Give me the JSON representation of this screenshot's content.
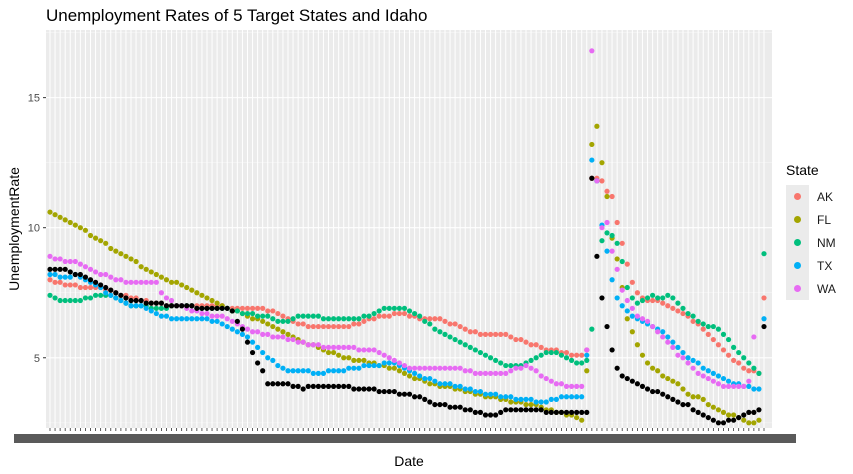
{
  "chart_data": {
    "type": "scatter",
    "title": "Unemployment Rates of 5 Target States and Idaho",
    "xlabel": "Date",
    "ylabel": "UnemploymentRate",
    "y_ticks": [
      5,
      10,
      15
    ],
    "ylim": [
      2.3,
      17.6
    ],
    "x_range_months": "2010-01 to 2021-10 (monthly)",
    "grid": true,
    "legend_position": "right",
    "legend_title": "State",
    "n_points": 142,
    "series": [
      {
        "name": "AK",
        "color": "#F8766D",
        "values": [
          8.0,
          7.9,
          7.9,
          7.8,
          7.8,
          7.8,
          7.7,
          7.7,
          7.7,
          7.7,
          7.7,
          7.6,
          7.6,
          7.5,
          7.4,
          7.4,
          7.3,
          7.3,
          7.2,
          7.2,
          7.1,
          7.1,
          7.1,
          7.0,
          7.0,
          7.0,
          7.0,
          7.0,
          7.0,
          7.0,
          7.0,
          7.0,
          7.0,
          7.0,
          7.0,
          6.9,
          6.9,
          6.9,
          6.9,
          6.9,
          6.9,
          6.9,
          6.9,
          6.8,
          6.8,
          6.7,
          6.6,
          6.5,
          6.4,
          6.3,
          6.3,
          6.2,
          6.2,
          6.2,
          6.2,
          6.2,
          6.2,
          6.2,
          6.2,
          6.2,
          6.3,
          6.3,
          6.4,
          6.5,
          6.5,
          6.6,
          6.6,
          6.6,
          6.7,
          6.7,
          6.7,
          6.6,
          6.6,
          6.5,
          6.5,
          6.5,
          6.5,
          6.5,
          6.4,
          6.3,
          6.3,
          6.2,
          6.1,
          6.0,
          6.0,
          5.9,
          5.9,
          5.9,
          5.9,
          5.9,
          5.9,
          5.8,
          5.7,
          5.7,
          5.6,
          5.5,
          5.5,
          5.4,
          5.3,
          5.3,
          5.3,
          5.2,
          5.2,
          5.1,
          5.1,
          5.1,
          5.3,
          11.9,
          11.9,
          11.8,
          11.4,
          11.2,
          10.2,
          9.4,
          8.6,
          7.9,
          7.5,
          7.3,
          7.2,
          7.2,
          7.2,
          7.1,
          7.0,
          6.9,
          6.8,
          6.7,
          6.6,
          6.4,
          6.3,
          6.1,
          5.9,
          5.7,
          5.5,
          5.3,
          5.1,
          4.9,
          4.8,
          4.6,
          4.5,
          4.5,
          4.4,
          7.3
        ]
      },
      {
        "name": "FL",
        "color": "#A3A500",
        "values": [
          10.6,
          10.5,
          10.4,
          10.3,
          10.2,
          10.1,
          10.0,
          9.9,
          9.7,
          9.6,
          9.5,
          9.4,
          9.2,
          9.1,
          9.0,
          8.9,
          8.8,
          8.7,
          8.5,
          8.4,
          8.3,
          8.2,
          8.1,
          8.0,
          7.9,
          7.9,
          7.8,
          7.7,
          7.6,
          7.5,
          7.4,
          7.3,
          7.2,
          7.1,
          7.0,
          6.9,
          6.8,
          6.8,
          6.7,
          6.6,
          6.5,
          6.5,
          6.4,
          6.3,
          6.2,
          6.1,
          6.0,
          5.9,
          5.8,
          5.7,
          5.6,
          5.5,
          5.5,
          5.4,
          5.3,
          5.2,
          5.2,
          5.1,
          5.0,
          5.0,
          4.9,
          4.9,
          4.9,
          4.8,
          4.8,
          4.7,
          4.7,
          4.6,
          4.6,
          4.5,
          4.4,
          4.3,
          4.2,
          4.2,
          4.1,
          4.0,
          4.0,
          3.9,
          3.9,
          3.9,
          3.8,
          3.8,
          3.7,
          3.7,
          3.6,
          3.6,
          3.5,
          3.5,
          3.5,
          3.4,
          3.4,
          3.3,
          3.3,
          3.3,
          3.2,
          3.2,
          3.2,
          3.1,
          3.0,
          3.0,
          2.9,
          2.9,
          2.8,
          2.8,
          2.7,
          2.6,
          4.5,
          13.2,
          13.9,
          12.5,
          11.2,
          9.6,
          8.8,
          7.7,
          6.5,
          6.0,
          5.5,
          5.1,
          4.8,
          4.6,
          4.5,
          4.3,
          4.2,
          4.1,
          4.0,
          3.8,
          3.6,
          3.5,
          3.5,
          3.4,
          3.2,
          3.1,
          3.0,
          2.9,
          2.8,
          2.8,
          2.7,
          2.6,
          2.5,
          2.5,
          2.6
        ]
      },
      {
        "name": "NM",
        "color": "#00BF7D",
        "values": [
          7.4,
          7.3,
          7.2,
          7.2,
          7.2,
          7.2,
          7.2,
          7.3,
          7.3,
          7.4,
          7.4,
          7.4,
          7.4,
          7.3,
          7.2,
          7.1,
          7.0,
          7.0,
          7.0,
          7.0,
          6.9,
          6.9,
          6.9,
          6.9,
          7.0,
          7.0,
          7.0,
          7.0,
          7.0,
          6.9,
          6.9,
          6.9,
          6.9,
          6.9,
          6.9,
          6.9,
          6.8,
          6.8,
          6.7,
          6.7,
          6.7,
          6.6,
          6.6,
          6.6,
          6.5,
          6.4,
          6.4,
          6.4,
          6.5,
          6.6,
          6.6,
          6.6,
          6.6,
          6.6,
          6.5,
          6.5,
          6.5,
          6.5,
          6.5,
          6.5,
          6.5,
          6.5,
          6.6,
          6.6,
          6.7,
          6.8,
          6.9,
          6.9,
          6.9,
          6.9,
          6.9,
          6.8,
          6.7,
          6.6,
          6.4,
          6.3,
          6.1,
          6.0,
          5.9,
          5.8,
          5.7,
          5.6,
          5.5,
          5.4,
          5.3,
          5.2,
          5.1,
          5.0,
          4.9,
          4.8,
          4.7,
          4.7,
          4.7,
          4.7,
          4.8,
          4.9,
          5.0,
          5.1,
          5.2,
          5.2,
          5.2,
          5.1,
          5.0,
          4.9,
          4.8,
          4.8,
          4.9,
          6.1,
          11.8,
          9.5,
          9.8,
          9.7,
          9.4,
          8.7,
          7.7,
          7.3,
          7.1,
          7.2,
          7.3,
          7.4,
          7.3,
          7.3,
          7.4,
          7.3,
          7.1,
          6.9,
          6.7,
          6.6,
          6.4,
          6.3,
          6.2,
          6.2,
          6.1,
          5.9,
          5.7,
          5.4,
          5.2,
          5.0,
          4.8,
          4.6,
          4.4,
          9.0
        ]
      },
      {
        "name": "TX",
        "color": "#00B0F6",
        "values": [
          8.2,
          8.2,
          8.1,
          8.1,
          8.1,
          8.2,
          8.1,
          8.0,
          7.9,
          7.8,
          7.7,
          7.5,
          7.4,
          7.3,
          7.2,
          7.1,
          7.0,
          7.0,
          7.0,
          6.9,
          6.8,
          6.7,
          6.6,
          6.6,
          6.5,
          6.5,
          6.5,
          6.5,
          6.5,
          6.5,
          6.5,
          6.5,
          6.4,
          6.4,
          6.3,
          6.2,
          6.1,
          6.0,
          5.9,
          5.8,
          5.6,
          5.4,
          5.2,
          5.0,
          4.9,
          4.7,
          4.6,
          4.5,
          4.5,
          4.5,
          4.5,
          4.5,
          4.4,
          4.4,
          4.4,
          4.5,
          4.5,
          4.5,
          4.5,
          4.6,
          4.6,
          4.6,
          4.7,
          4.7,
          4.7,
          4.7,
          4.8,
          4.8,
          4.8,
          4.7,
          4.6,
          4.5,
          4.4,
          4.3,
          4.2,
          4.2,
          4.1,
          4.0,
          4.0,
          4.0,
          3.9,
          3.9,
          3.8,
          3.8,
          3.7,
          3.7,
          3.6,
          3.6,
          3.6,
          3.5,
          3.5,
          3.5,
          3.4,
          3.4,
          3.4,
          3.4,
          3.3,
          3.3,
          3.3,
          3.4,
          3.4,
          3.5,
          3.5,
          3.5,
          3.5,
          3.5,
          5.1,
          12.6,
          11.8,
          10.1,
          9.1,
          8.0,
          7.3,
          7.0,
          6.8,
          6.6,
          6.5,
          6.4,
          6.3,
          6.2,
          6.1,
          6.0,
          5.8,
          5.6,
          5.4,
          5.2,
          5.0,
          4.9,
          4.8,
          4.6,
          4.5,
          4.4,
          4.3,
          4.2,
          4.1,
          4.0,
          4.0,
          3.9,
          3.9,
          3.8,
          3.8,
          6.5
        ]
      },
      {
        "name": "WA",
        "color": "#E76BF3",
        "values": [
          8.9,
          8.8,
          8.8,
          8.7,
          8.7,
          8.7,
          8.6,
          8.5,
          8.4,
          8.3,
          8.2,
          8.2,
          8.1,
          8.0,
          8.0,
          7.9,
          7.9,
          7.9,
          7.9,
          7.9,
          7.9,
          7.9,
          7.5,
          7.3,
          7.2,
          7.0,
          7.0,
          6.9,
          6.8,
          6.8,
          6.7,
          6.7,
          6.6,
          6.6,
          6.6,
          6.5,
          6.4,
          6.3,
          6.2,
          6.1,
          6.0,
          6.0,
          5.9,
          5.9,
          5.8,
          5.8,
          5.8,
          5.7,
          5.7,
          5.6,
          5.6,
          5.5,
          5.5,
          5.5,
          5.4,
          5.4,
          5.4,
          5.4,
          5.4,
          5.4,
          5.4,
          5.3,
          5.3,
          5.3,
          5.3,
          5.2,
          5.1,
          5.0,
          4.9,
          4.8,
          4.7,
          4.6,
          4.6,
          4.6,
          4.6,
          4.6,
          4.6,
          4.6,
          4.6,
          4.6,
          4.6,
          4.6,
          4.5,
          4.5,
          4.4,
          4.4,
          4.4,
          4.4,
          4.4,
          4.4,
          4.4,
          4.5,
          4.6,
          4.6,
          4.7,
          4.6,
          4.5,
          4.3,
          4.2,
          4.1,
          4.0,
          4.0,
          3.9,
          3.9,
          3.9,
          3.9,
          5.3,
          16.8,
          11.8,
          10.0,
          10.2,
          9.1,
          8.4,
          7.6,
          7.2,
          6.9,
          6.6,
          6.5,
          6.4,
          6.2,
          6.0,
          5.8,
          5.6,
          5.4,
          5.1,
          5.0,
          4.8,
          4.6,
          4.4,
          4.3,
          4.2,
          4.1,
          4.0,
          3.9,
          3.9,
          3.9,
          3.9,
          3.9,
          4.1,
          5.8
        ]
      },
      {
        "name": "Idaho",
        "color": "#000000",
        "values": [
          8.4,
          8.4,
          8.4,
          8.4,
          8.3,
          8.2,
          8.2,
          8.1,
          8.0,
          7.9,
          7.8,
          7.7,
          7.6,
          7.5,
          7.4,
          7.3,
          7.2,
          7.2,
          7.2,
          7.1,
          7.1,
          7.1,
          7.1,
          7.0,
          7.0,
          7.0,
          7.0,
          7.0,
          7.0,
          6.9,
          6.9,
          6.9,
          6.9,
          6.9,
          6.9,
          6.9,
          6.8,
          6.4,
          6.1,
          5.6,
          5.2,
          4.8,
          4.5,
          4.0,
          4.0,
          4.0,
          4.0,
          4.0,
          3.9,
          3.9,
          3.8,
          3.9,
          3.9,
          3.9,
          3.9,
          3.9,
          3.9,
          3.9,
          3.9,
          3.9,
          3.8,
          3.8,
          3.8,
          3.8,
          3.8,
          3.7,
          3.7,
          3.7,
          3.7,
          3.6,
          3.6,
          3.6,
          3.5,
          3.5,
          3.4,
          3.3,
          3.2,
          3.2,
          3.2,
          3.1,
          3.1,
          3.1,
          3.0,
          3.0,
          2.9,
          2.9,
          2.8,
          2.8,
          2.8,
          2.9,
          3.0,
          3.0,
          3.0,
          3.0,
          3.0,
          3.0,
          3.0,
          3.0,
          2.9,
          2.9,
          2.9,
          2.9,
          2.9,
          2.9,
          2.9,
          2.9,
          2.9,
          11.9,
          8.9,
          7.3,
          6.2,
          5.3,
          4.6,
          4.3,
          4.2,
          4.1,
          4.0,
          3.9,
          3.8,
          3.7,
          3.7,
          3.6,
          3.5,
          3.4,
          3.3,
          3.2,
          3.2,
          3.0,
          2.9,
          2.8,
          2.7,
          2.6,
          2.5,
          2.5,
          2.6,
          2.6,
          2.7,
          2.8,
          2.9,
          2.9,
          3.0,
          6.2
        ]
      }
    ]
  }
}
